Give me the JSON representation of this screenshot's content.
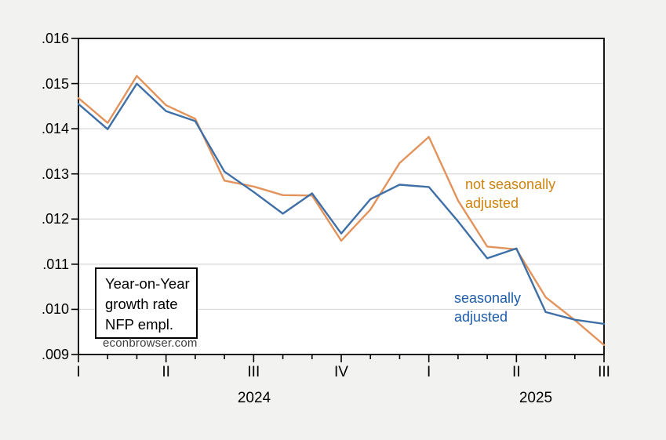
{
  "chart_data": {
    "type": "line",
    "x_unit": "monthly",
    "months": [
      "2024-01",
      "2024-02",
      "2024-03",
      "2024-04",
      "2024-05",
      "2024-06",
      "2024-07",
      "2024-08",
      "2024-09",
      "2024-10",
      "2024-11",
      "2024-12",
      "2025-01",
      "2025-02",
      "2025-03",
      "2025-04",
      "2025-05",
      "2025-06",
      "2025-07"
    ],
    "series": [
      {
        "name": "not seasonally adjusted",
        "values": [
          0.01468,
          0.01413,
          0.01517,
          0.01452,
          0.01422,
          0.01285,
          0.01272,
          0.01253,
          0.01252,
          0.01152,
          0.01221,
          0.01324,
          0.01382,
          0.01241,
          0.01139,
          0.01133,
          0.01027,
          0.00976,
          0.00921
        ]
      },
      {
        "name": "seasonally adjusted",
        "values": [
          0.01455,
          0.01399,
          0.015,
          0.01439,
          0.01417,
          0.01305,
          0.0126,
          0.01212,
          0.01257,
          0.01168,
          0.01244,
          0.01276,
          0.01271,
          0.01195,
          0.01113,
          0.01135,
          0.00994,
          0.00977,
          0.00968
        ]
      }
    ],
    "ylim": [
      0.009,
      0.016
    ],
    "y_tick_step": 0.001,
    "y_tick_labels": [
      ".016",
      ".015",
      ".014",
      ".013",
      ".012",
      ".011",
      ".010",
      ".009"
    ],
    "y_tick_values": [
      0.016,
      0.015,
      0.014,
      0.013,
      0.012,
      0.011,
      0.01,
      0.009
    ],
    "x_quarter_tick_labels": [
      "I",
      "II",
      "III",
      "IV",
      "I",
      "II",
      "III"
    ],
    "x_quarter_tick_month_index": [
      0,
      3,
      6,
      9,
      12,
      15,
      18
    ],
    "grid": "horizontal",
    "legend_position": "inline-text-labels"
  },
  "year_labels": {
    "y2024": "2024",
    "y2025": "2025"
  },
  "annotation_box": {
    "lines": [
      "Year-on-Year",
      "growth rate",
      "NFP empl."
    ]
  },
  "watermark": "econbrowser.com",
  "series_labels": {
    "nsa": {
      "lines": [
        "not seasonally",
        "adjusted"
      ]
    },
    "sa": {
      "lines": [
        "seasonally",
        "adjusted"
      ]
    }
  },
  "colors": {
    "background": "#F2F2F1",
    "plot_background": "#FFFFFF",
    "frame": "#000000",
    "gridline": "#D9D9D9",
    "nsa_line": "#E2935B",
    "sa_line": "#3E6FA6",
    "nsa_label_text": "#CC830E",
    "sa_label_text": "#1E5CA8",
    "watermark_text": "#3D3D3D"
  }
}
